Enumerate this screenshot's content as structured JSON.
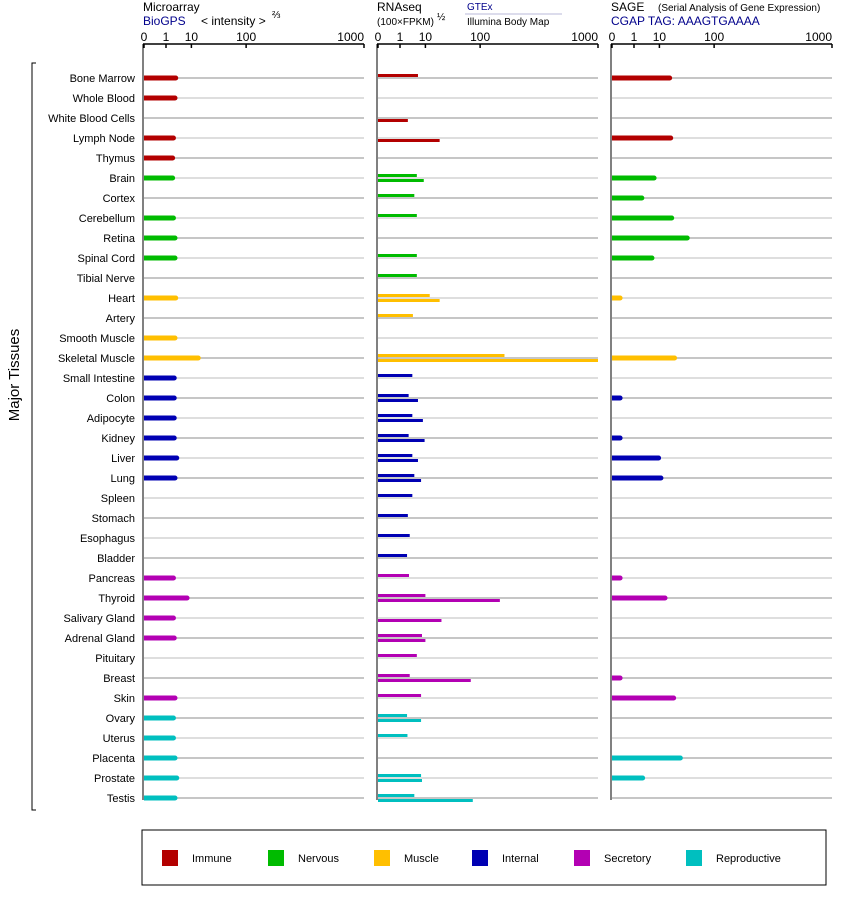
{
  "panels": {
    "microarray": {
      "title": "Microarray",
      "source": "BioGPS",
      "scale_label": "< intensity >",
      "scale_exp": "⅔",
      "ticks": [
        "0",
        "1",
        "10",
        "100",
        "1000"
      ]
    },
    "rnaseq": {
      "title": "RNAseq",
      "unit": "(100×FPKM)",
      "unit_exp": "½",
      "source_a": "GTEx",
      "source_b": "Illumina Body Map",
      "ticks": [
        "0",
        "1",
        "10",
        "100",
        "1000"
      ]
    },
    "sage": {
      "title": "SAGE",
      "subtitle": "(Serial Analysis of Gene Expression)",
      "tag": "CGAP TAG: AAAGTGAAAA",
      "ticks": [
        "0",
        "1",
        "10",
        "100",
        "1000"
      ]
    }
  },
  "y_axis_label": "Major Tissues",
  "colors": {
    "Immune": "#b30000",
    "Nervous": "#00bb00",
    "Muscle": "#ffbf00",
    "Internal": "#0000b3",
    "Secretory": "#b300b3",
    "Reproductive": "#00bfbf"
  },
  "legend": [
    {
      "label": "Immune",
      "group": "Immune"
    },
    {
      "label": "Nervous",
      "group": "Nervous"
    },
    {
      "label": "Muscle",
      "group": "Muscle"
    },
    {
      "label": "Internal",
      "group": "Internal"
    },
    {
      "label": "Secretory",
      "group": "Secretory"
    },
    {
      "label": "Reproductive",
      "group": "Reproductive"
    }
  ],
  "chart_data": {
    "type": "bar",
    "categories": [
      "Bone Marrow",
      "Whole Blood",
      "White Blood Cells",
      "Lymph Node",
      "Thymus",
      "Brain",
      "Cortex",
      "Cerebellum",
      "Retina",
      "Spinal Cord",
      "Tibial Nerve",
      "Heart",
      "Artery",
      "Smooth Muscle",
      "Skeletal Muscle",
      "Small Intestine",
      "Colon",
      "Adipocyte",
      "Kidney",
      "Liver",
      "Lung",
      "Spleen",
      "Stomach",
      "Esophagus",
      "Bladder",
      "Pancreas",
      "Thyroid",
      "Salivary Gland",
      "Adrenal Gland",
      "Pituitary",
      "Breast",
      "Skin",
      "Ovary",
      "Uterus",
      "Placenta",
      "Prostate",
      "Testis"
    ],
    "groups": [
      "Immune",
      "Immune",
      "Immune",
      "Immune",
      "Immune",
      "Nervous",
      "Nervous",
      "Nervous",
      "Nervous",
      "Nervous",
      "Nervous",
      "Muscle",
      "Muscle",
      "Muscle",
      "Muscle",
      "Internal",
      "Internal",
      "Internal",
      "Internal",
      "Internal",
      "Internal",
      "Internal",
      "Internal",
      "Internal",
      "Internal",
      "Secretory",
      "Secretory",
      "Secretory",
      "Secretory",
      "Secretory",
      "Secretory",
      "Secretory",
      "Reproductive",
      "Reproductive",
      "Reproductive",
      "Reproductive",
      "Reproductive"
    ],
    "x_scale": "power",
    "xlim": [
      0,
      1000
    ],
    "series": [
      {
        "name": "BioGPS",
        "panel": "microarray",
        "values": [
          3.0,
          2.8,
          null,
          2.4,
          2.2,
          2.2,
          null,
          2.4,
          2.8,
          2.8,
          null,
          3.0,
          null,
          2.8,
          15,
          2.6,
          2.6,
          2.6,
          2.6,
          3.3,
          2.8,
          null,
          null,
          null,
          null,
          2.4,
          7.5,
          2.4,
          2.6,
          null,
          null,
          2.8,
          2.4,
          2.4,
          2.8,
          3.3,
          2.8
        ]
      },
      {
        "name": "GTEx",
        "panel": "rnaseq",
        "values": [
          6,
          null,
          null,
          null,
          null,
          5.5,
          4.5,
          5.5,
          null,
          5.5,
          5.5,
          13,
          4,
          null,
          190,
          3.8,
          2.7,
          3.8,
          2.7,
          3.8,
          4.5,
          3.8,
          2.5,
          3.0,
          2.3,
          2.8,
          10,
          null,
          8,
          5.5,
          3.0,
          7.5,
          2.3,
          2.4,
          null,
          7.5,
          4.5
        ]
      },
      {
        "name": "Illumina Body Map",
        "panel": "rnaseq",
        "values": [
          null,
          null,
          2.5,
          22,
          null,
          9,
          null,
          null,
          null,
          null,
          null,
          22,
          null,
          null,
          1000,
          null,
          6,
          8.5,
          9.5,
          6,
          7.5,
          null,
          null,
          null,
          null,
          null,
          170,
          24,
          10,
          null,
          75,
          null,
          7.5,
          null,
          null,
          8,
          80
        ]
      },
      {
        "name": "SAGE",
        "panel": "sage",
        "values": [
          18,
          null,
          null,
          19,
          null,
          7,
          2.5,
          20,
          40,
          6,
          null,
          0.05,
          null,
          null,
          23,
          null,
          0.05,
          null,
          0.05,
          9.5,
          11,
          null,
          null,
          null,
          null,
          0.05,
          14,
          null,
          null,
          null,
          0.05,
          22,
          null,
          null,
          30,
          2.7,
          null
        ]
      }
    ]
  }
}
